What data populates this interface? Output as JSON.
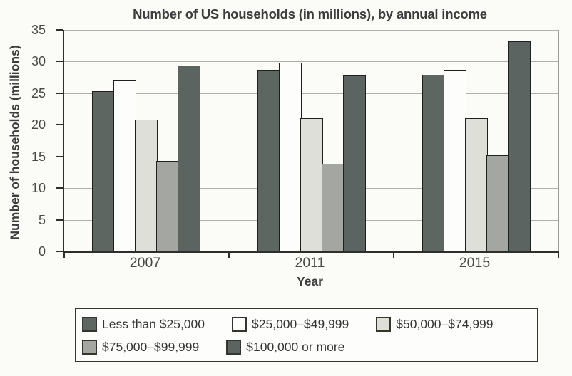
{
  "page_background": "#fbfbf8",
  "chart_data": {
    "type": "bar",
    "title": "Number of US households (in millions), by annual income",
    "xlabel": "Year",
    "ylabel": "Number of households (millions)",
    "categories": [
      "2007",
      "2011",
      "2015"
    ],
    "series": [
      {
        "name": "Less than $25,000",
        "color": "#5e6662",
        "values": [
          25.3,
          28.7,
          27.9
        ]
      },
      {
        "name": "$25,000–$49,999",
        "color": "#fdfdfb",
        "values": [
          27.0,
          29.8,
          28.7
        ]
      },
      {
        "name": "$50,000–$74,999",
        "color": "#dfdfda",
        "values": [
          20.8,
          21.1,
          21.0
        ]
      },
      {
        "name": "$75,000–$99,999",
        "color": "#a3a6a1",
        "values": [
          14.3,
          13.9,
          15.2
        ]
      },
      {
        "name": "$100,000 or more",
        "color": "#5c6461",
        "values": [
          29.4,
          27.8,
          33.2
        ]
      }
    ],
    "ylim": [
      0,
      35
    ],
    "yticks": [
      0,
      5,
      10,
      15,
      20,
      25,
      30,
      35
    ],
    "grid": true,
    "gridline_color": "#b0b0aa",
    "bar_border_color": "#1f1f1d",
    "legend_position": "bottom",
    "legend_row_split": 3
  }
}
